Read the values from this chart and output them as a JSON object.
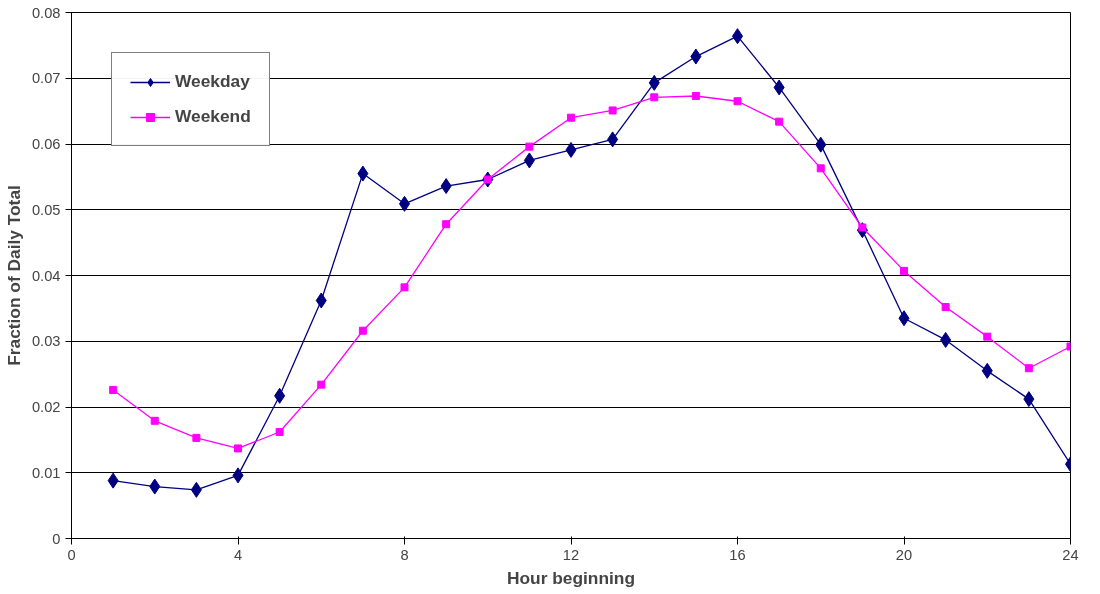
{
  "chart_data": {
    "type": "line",
    "xlabel": "Hour beginning",
    "ylabel": "Fraction of Daily Total",
    "x": [
      1,
      2,
      3,
      4,
      5,
      6,
      7,
      8,
      9,
      10,
      11,
      12,
      13,
      14,
      15,
      16,
      17,
      18,
      19,
      20,
      21,
      22,
      23,
      24
    ],
    "series": [
      {
        "name": "Weekday",
        "color": "#000080",
        "marker": "diamond",
        "values": [
          0.0088,
          0.0079,
          0.0074,
          0.0096,
          0.0217,
          0.0362,
          0.0555,
          0.0509,
          0.0536,
          0.0546,
          0.0575,
          0.0591,
          0.0607,
          0.0693,
          0.0733,
          0.0764,
          0.0686,
          0.0599,
          0.0469,
          0.0335,
          0.0302,
          0.0255,
          0.0212,
          0.0113
        ]
      },
      {
        "name": "Weekend",
        "color": "#ff00ff",
        "marker": "square",
        "values": [
          0.0226,
          0.0179,
          0.0153,
          0.0137,
          0.0162,
          0.0234,
          0.0316,
          0.0382,
          0.0478,
          0.0546,
          0.0596,
          0.064,
          0.0651,
          0.0671,
          0.0673,
          0.0665,
          0.0634,
          0.0563,
          0.0473,
          0.0407,
          0.0352,
          0.0307,
          0.0259,
          0.0292
        ]
      }
    ],
    "xlim": [
      0,
      24
    ],
    "xticks": [
      0,
      4,
      8,
      12,
      16,
      20,
      24
    ],
    "ylim": [
      0,
      0.08
    ],
    "yticks": [
      {
        "value": 0,
        "label": "0"
      },
      0.01,
      0.02,
      0.03,
      0.04,
      0.05,
      0.06,
      0.07,
      0.08
    ],
    "grid": "y",
    "legend": "top left",
    "line_style": "solid"
  }
}
